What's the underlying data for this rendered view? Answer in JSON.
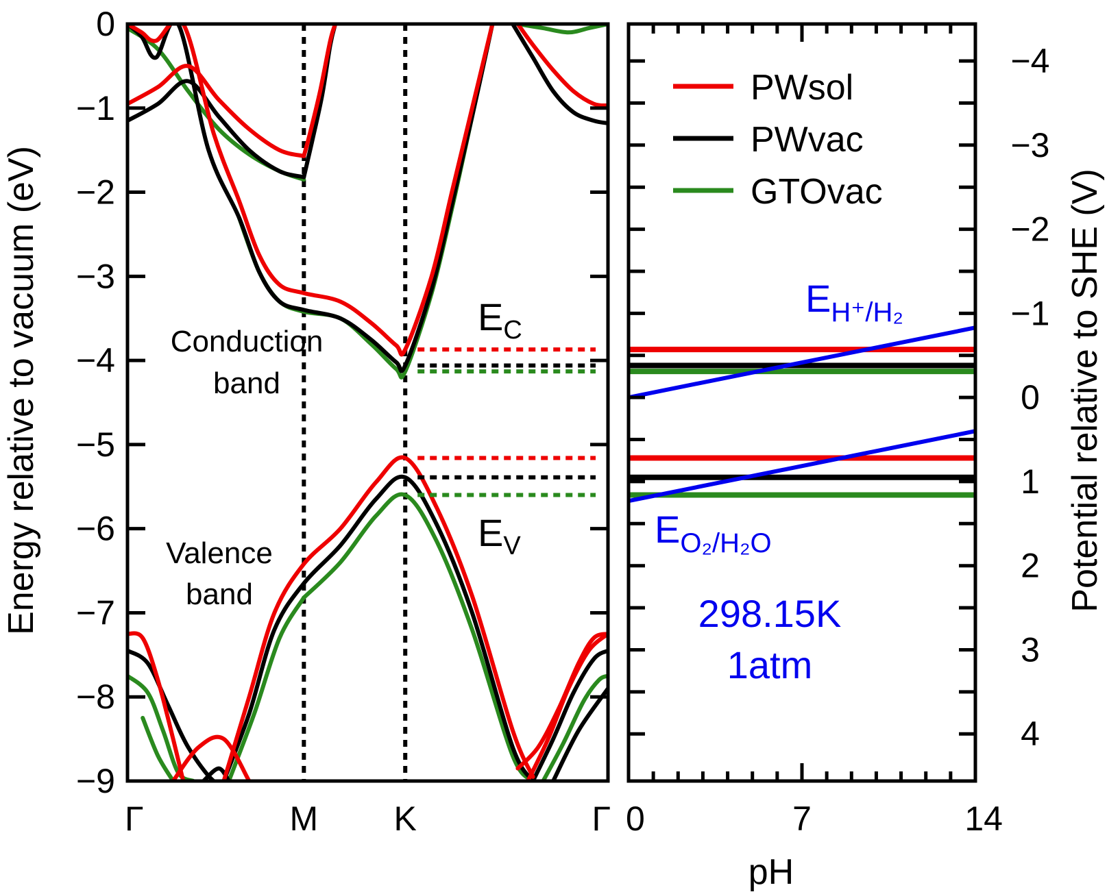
{
  "colors": {
    "PWsol": "#ee0000",
    "PWvac": "#000000",
    "GTOvac": "#2a8a1e",
    "redox": "#0000ee"
  },
  "chart_data": [
    {
      "type": "line",
      "panel": "band-structure",
      "ylabel": "Energy relative to vacuum (eV)",
      "ylim": [
        -9,
        0
      ],
      "yticks": [
        "0",
        "−1",
        "−2",
        "−3",
        "−4",
        "−5",
        "−6",
        "−7",
        "−8",
        "−9"
      ],
      "yticks_values": [
        0,
        -1,
        -2,
        -3,
        -4,
        -5,
        -6,
        -7,
        -8,
        -9
      ],
      "xticks": [
        "Γ",
        "M",
        "K",
        "Γ"
      ],
      "xticks_values": [
        0,
        1.74,
        2.74,
        4.74
      ],
      "xlim": [
        0,
        4.74
      ],
      "k_point_lines": [
        1.74,
        2.74
      ],
      "annotations": {
        "conduction_1": "Conduction",
        "conduction_2": "band",
        "valence_1": "Valence",
        "valence_2": "band",
        "ec_main": "E",
        "ec_sub": "C",
        "ev_main": "E",
        "ev_sub": "V"
      },
      "band_edges": {
        "PWsol": {
          "cbm": -3.87,
          "vbm": -5.16
        },
        "PWvac": {
          "cbm": -4.06,
          "vbm": -5.39
        },
        "GTOvac": {
          "cbm": -4.13,
          "vbm": -5.6
        }
      },
      "series": [
        {
          "name": "PWsol",
          "band": "conduction-1",
          "x": [
            0,
            0.3,
            0.6,
            0.9,
            1.2,
            1.5,
            1.74
          ],
          "y": [
            -0.95,
            -0.75,
            -0.5,
            -0.9,
            -1.25,
            -1.5,
            -1.57
          ]
        },
        {
          "name": "PWsol",
          "band": "conduction-2",
          "x": [
            0,
            0.14,
            0.28,
            0.55,
            0.85,
            1.1,
            1.3,
            1.5,
            1.74,
            2.1,
            2.4,
            2.65,
            2.74,
            3.0,
            3.2,
            3.4,
            3.6
          ],
          "y": [
            0,
            -0.1,
            -0.2,
            0,
            -1.3,
            -2.1,
            -2.75,
            -3.1,
            -3.2,
            -3.3,
            -3.55,
            -3.82,
            -3.87,
            -3.0,
            -2.0,
            -1.0,
            0
          ]
        },
        {
          "name": "PWsol",
          "band": "conduction-3",
          "x": [
            1.74,
            1.8,
            1.9,
            2.0,
            2.05
          ],
          "y": [
            -1.57,
            -1.3,
            -0.8,
            -0.2,
            0
          ]
        },
        {
          "name": "PWsol",
          "band": "conduction-4",
          "x": [
            3.85,
            4.0,
            4.2,
            4.4,
            4.6,
            4.74
          ],
          "y": [
            0,
            -0.25,
            -0.55,
            -0.8,
            -0.95,
            -0.97
          ]
        },
        {
          "name": "PWsol",
          "band": "valence-1",
          "x": [
            0.95,
            1.2,
            1.45,
            1.74,
            2.1,
            2.45,
            2.74,
            3.05,
            3.4,
            3.8,
            4.0
          ],
          "y": [
            -9,
            -8.0,
            -7.0,
            -6.42,
            -6.0,
            -5.45,
            -5.16,
            -5.75,
            -6.8,
            -8.4,
            -8.95
          ]
        },
        {
          "name": "PWsol",
          "band": "valence-2",
          "x": [
            0,
            0.15,
            0.3,
            0.45,
            0.55
          ],
          "y": [
            -7.25,
            -7.3,
            -7.8,
            -8.5,
            -9
          ]
        },
        {
          "name": "PWsol",
          "band": "valence-3",
          "x": [
            0.45,
            0.7,
            0.95,
            1.2
          ],
          "y": [
            -9,
            -8.6,
            -8.5,
            -9
          ]
        },
        {
          "name": "PWsol",
          "band": "valence-4",
          "x": [
            3.85,
            4.05,
            4.25,
            4.45,
            4.6,
            4.74
          ],
          "y": [
            -8.85,
            -8.6,
            -8.15,
            -7.6,
            -7.3,
            -7.25
          ]
        },
        {
          "name": "PWsol",
          "band": "valence-5",
          "x": [
            3.95,
            4.15,
            4.35,
            4.55,
            4.74
          ],
          "y": [
            -9,
            -8.5,
            -7.9,
            -7.45,
            -7.25
          ]
        },
        {
          "name": "PWvac",
          "band": "conduction-1",
          "x": [
            0,
            0.3,
            0.6,
            0.9,
            1.2,
            1.5,
            1.74
          ],
          "y": [
            -1.15,
            -0.95,
            -0.68,
            -1.1,
            -1.5,
            -1.75,
            -1.82
          ]
        },
        {
          "name": "PWvac",
          "band": "conduction-2",
          "x": [
            0,
            0.14,
            0.28,
            0.5,
            0.8,
            1.1,
            1.3,
            1.5,
            1.74,
            2.1,
            2.4,
            2.65,
            2.74,
            3.0,
            3.2,
            3.4,
            3.6
          ],
          "y": [
            0,
            -0.15,
            -0.4,
            0,
            -1.5,
            -2.3,
            -2.95,
            -3.3,
            -3.4,
            -3.5,
            -3.75,
            -4.02,
            -4.06,
            -3.15,
            -2.15,
            -1.1,
            0
          ]
        },
        {
          "name": "PWvac",
          "band": "conduction-3",
          "x": [
            1.74,
            1.82,
            1.92,
            2.0,
            2.05
          ],
          "y": [
            -1.82,
            -1.4,
            -0.85,
            -0.25,
            0
          ]
        },
        {
          "name": "PWvac",
          "band": "conduction-4",
          "x": [
            3.8,
            4.0,
            4.2,
            4.4,
            4.6,
            4.74
          ],
          "y": [
            0,
            -0.4,
            -0.8,
            -1.05,
            -1.15,
            -1.18
          ]
        },
        {
          "name": "PWvac",
          "band": "valence-1",
          "x": [
            0.95,
            1.2,
            1.45,
            1.74,
            2.1,
            2.45,
            2.74,
            3.05,
            3.4,
            3.8,
            4.0
          ],
          "y": [
            -9,
            -8.2,
            -7.2,
            -6.65,
            -6.2,
            -5.65,
            -5.39,
            -5.95,
            -7.0,
            -8.6,
            -9
          ]
        },
        {
          "name": "PWvac",
          "band": "valence-2",
          "x": [
            0,
            0.2,
            0.4,
            0.6,
            0.85,
            1.0
          ],
          "y": [
            -7.45,
            -7.6,
            -8.1,
            -8.6,
            -9,
            -9
          ]
        },
        {
          "name": "PWvac",
          "band": "valence-3",
          "x": [
            0.75,
            0.9,
            1.0
          ],
          "y": [
            -9,
            -8.85,
            -9
          ]
        },
        {
          "name": "PWvac",
          "band": "valence-4",
          "x": [
            4.0,
            4.2,
            4.4,
            4.6,
            4.74
          ],
          "y": [
            -9,
            -8.5,
            -7.95,
            -7.55,
            -7.45
          ]
        },
        {
          "name": "PWvac",
          "band": "valence-5",
          "x": [
            4.2,
            4.45,
            4.74
          ],
          "y": [
            -9,
            -8.4,
            -7.9
          ]
        },
        {
          "name": "GTOvac",
          "band": "conduction-1",
          "x": [
            0,
            0.3,
            0.6,
            0.9,
            1.2,
            1.5,
            1.74
          ],
          "y": [
            -0.05,
            -0.3,
            -0.8,
            -1.25,
            -1.55,
            -1.75,
            -1.85
          ]
        },
        {
          "name": "GTOvac",
          "band": "conduction-2",
          "x": [
            1.1,
            1.3,
            1.5,
            1.74,
            2.1,
            2.4,
            2.65,
            2.74,
            3.0,
            3.2,
            3.4,
            3.6
          ],
          "y": [
            -2.3,
            -2.95,
            -3.3,
            -3.42,
            -3.5,
            -3.8,
            -4.1,
            -4.13,
            -3.2,
            -2.2,
            -1.1,
            0
          ]
        },
        {
          "name": "GTOvac",
          "band": "conduction-4",
          "x": [
            3.85,
            4.1,
            4.35,
            4.55,
            4.74
          ],
          "y": [
            0,
            -0.05,
            -0.1,
            -0.05,
            0
          ]
        },
        {
          "name": "GTOvac",
          "band": "valence-1",
          "x": [
            1.74,
            2.1,
            2.45,
            2.74,
            3.05,
            3.4,
            3.8,
            4.0
          ],
          "y": [
            -6.82,
            -6.4,
            -5.85,
            -5.6,
            -6.15,
            -7.2,
            -8.7,
            -9
          ]
        },
        {
          "name": "GTOvac",
          "band": "valence-1b",
          "x": [
            1.0,
            1.25,
            1.5,
            1.74
          ],
          "y": [
            -9,
            -8.2,
            -7.3,
            -6.82
          ]
        },
        {
          "name": "GTOvac",
          "band": "valence-2",
          "x": [
            0,
            0.2,
            0.35,
            0.5,
            0.65
          ],
          "y": [
            -7.75,
            -7.95,
            -8.4,
            -8.9,
            -9
          ]
        },
        {
          "name": "GTOvac",
          "band": "valence-3",
          "x": [
            0.15,
            0.3,
            0.45
          ],
          "y": [
            -8.25,
            -8.7,
            -9
          ]
        },
        {
          "name": "GTOvac",
          "band": "valence-4",
          "x": [
            4.1,
            4.3,
            4.5,
            4.65,
            4.74
          ],
          "y": [
            -9,
            -8.55,
            -8.05,
            -7.8,
            -7.75
          ]
        }
      ]
    },
    {
      "type": "line",
      "panel": "ph-potential",
      "xlabel": "pH",
      "xlim": [
        0,
        14
      ],
      "xticks": [
        "0",
        "7",
        "14"
      ],
      "xticks_values": [
        0,
        7,
        14
      ],
      "ylabel_right": "Potential relative to SHE (V)",
      "ylim_she": [
        -4.44,
        4.56
      ],
      "yticks_right": [
        "−4",
        "−3",
        "−2",
        "−1",
        "0",
        "1",
        "2",
        "3",
        "4"
      ],
      "yticks_right_values": [
        -4,
        -3,
        -2,
        -1,
        0,
        1,
        2,
        3,
        4
      ],
      "legend": {
        "position": "top-right",
        "entries": [
          {
            "name": "PWsol"
          },
          {
            "name": "PWvac"
          },
          {
            "name": "GTOvac"
          }
        ]
      },
      "band_edge_lines_ev": {
        "PWsol": [
          -3.87,
          -5.16
        ],
        "PWvac": [
          -4.06,
          -5.39
        ],
        "GTOvac": [
          -4.13,
          -5.6
        ]
      },
      "redox_lines": [
        {
          "label_main": "E",
          "label_sub": "H⁺/H₂",
          "ph": [
            0,
            14
          ],
          "she_v": [
            0,
            -0.83
          ]
        },
        {
          "label_main": "E",
          "label_sub": "O₂/H₂O",
          "ph": [
            0,
            14
          ],
          "she_v": [
            1.23,
            0.4
          ]
        }
      ],
      "conditions": {
        "line1": "298.15K",
        "line2": "1atm"
      }
    }
  ]
}
